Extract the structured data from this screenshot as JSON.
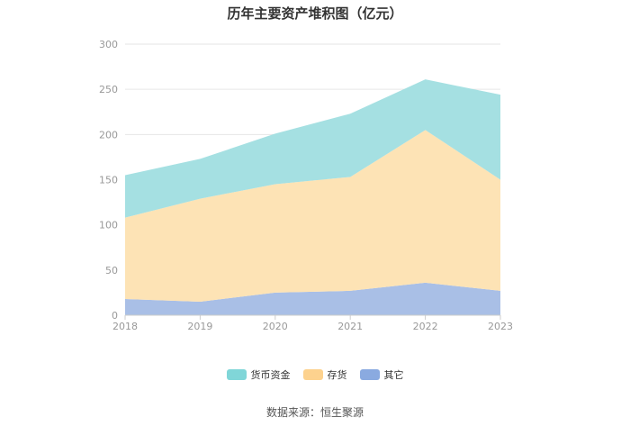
{
  "title": "历年主要资产堆积图（亿元）",
  "source": "数据来源：恒生聚源",
  "chart_data": {
    "type": "area",
    "stacked": true,
    "title": "历年主要资产堆积图（亿元）",
    "xlabel": "",
    "ylabel": "",
    "x": [
      "2018",
      "2019",
      "2020",
      "2021",
      "2022",
      "2023"
    ],
    "ylim": [
      0,
      300
    ],
    "yticks": [
      "0",
      "50",
      "100",
      "150",
      "200",
      "250",
      "300"
    ],
    "grid": true,
    "legend_position": "bottom",
    "series": [
      {
        "name": "其它",
        "values": [
          18,
          15,
          25,
          27,
          36,
          27
        ],
        "color": "#a9bfe6"
      },
      {
        "name": "存货",
        "values": [
          90,
          114,
          120,
          126,
          169,
          123
        ],
        "color": "#fde3b5"
      },
      {
        "name": "货币资金",
        "values": [
          47,
          44,
          56,
          70,
          56,
          94
        ],
        "color": "#a5e0e2"
      }
    ],
    "legend": [
      {
        "name": "货币资金",
        "color": "#80d6d8"
      },
      {
        "name": "存货",
        "color": "#fdd28e"
      },
      {
        "name": "其它",
        "color": "#8aaae0"
      }
    ]
  }
}
